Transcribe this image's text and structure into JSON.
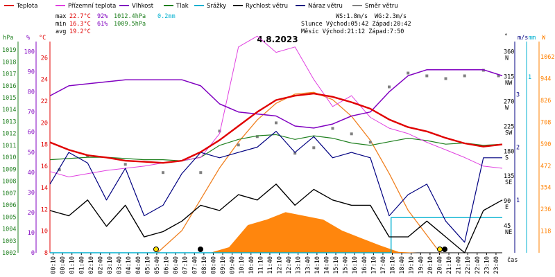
{
  "chart_data": {
    "type": "line",
    "title": "4.8.2023",
    "legend": [
      {
        "label": "Teplota",
        "color": "#e00000"
      },
      {
        "label": "Přízemní teplota",
        "color": "#e040e0"
      },
      {
        "label": "Vlhkost",
        "color": "#8000c0"
      },
      {
        "label": "Tlak",
        "color": "#208020"
      },
      {
        "label": "Srážky",
        "color": "#00b0d0"
      },
      {
        "label": "Rychlost větru",
        "color": "#000000"
      },
      {
        "label": "Náraz větru",
        "color": "#000080"
      },
      {
        "label": "Směr větru",
        "color": "#808080"
      }
    ],
    "stats": {
      "max": {
        "label": "max",
        "temp": "22.7°C",
        "hum": "92%",
        "press": "1012.4hPa",
        "rain": "0.2mm"
      },
      "min": {
        "label": "min",
        "temp": "16.3°C",
        "hum": "61%",
        "press": "1009.5hPa"
      },
      "avg": {
        "label": "avg",
        "temp": "19.2°C"
      },
      "ws": "WS:1.8m/s",
      "wg": "WG:2.3m/s",
      "sun": "Slunce Východ:05:42  Západ:20:42",
      "moon": "Měsíc  Východ:21:12  Západ:7:50"
    },
    "axes": {
      "hpa_title": "hPa",
      "pct_title": "%",
      "c_title": "°C",
      "deg_title": "°",
      "ms_title": "m/s",
      "mm_title": "mm",
      "w_title": "W",
      "x_title": "čas",
      "hpa": [
        1019,
        1018,
        1017,
        1016,
        1015,
        1014,
        1013,
        1012,
        1011,
        1010,
        1009,
        1008,
        1007,
        1006,
        1005,
        1004,
        1003,
        1002
      ],
      "pct": [
        100,
        90,
        80,
        70,
        60,
        50,
        40,
        30,
        20,
        10,
        0
      ],
      "c": [
        26,
        24,
        22,
        20,
        18,
        16,
        14,
        12,
        10,
        8
      ],
      "deg": [
        {
          "v": 360,
          "d": "N"
        },
        {
          "v": 315,
          "d": "NW"
        },
        {
          "v": 270,
          "d": "W"
        },
        {
          "v": 225,
          "d": "SW"
        },
        {
          "v": 180,
          "d": "S"
        },
        {
          "v": 135,
          "d": "SE"
        },
        {
          "v": 90,
          "d": "E"
        },
        {
          "v": 45,
          "d": "NE"
        }
      ],
      "ms": [
        3,
        2,
        1
      ],
      "mm": [
        1
      ],
      "w": [
        1062,
        944,
        826,
        708,
        590,
        472,
        354,
        236,
        118
      ],
      "x_ticks": [
        "00:10",
        "00:40",
        "01:10",
        "01:40",
        "02:10",
        "02:40",
        "03:10",
        "03:40",
        "04:10",
        "04:40",
        "05:10",
        "05:40",
        "06:10",
        "06:40",
        "07:10",
        "07:40",
        "08:10",
        "08:40",
        "09:10",
        "09:40",
        "10:10",
        "10:40",
        "11:10",
        "11:40",
        "12:10",
        "12:40",
        "13:10",
        "13:40",
        "14:10",
        "14:40",
        "15:10",
        "15:40",
        "16:10",
        "16:40",
        "17:10",
        "17:40",
        "18:10",
        "18:40",
        "19:10",
        "19:40",
        "20:10",
        "20:40",
        "21:10",
        "21:40",
        "22:10",
        "22:40",
        "23:10",
        "23:40"
      ]
    },
    "x_range_hours": [
      0,
      24
    ],
    "series": {
      "temperature": {
        "unit": "°C",
        "x": [
          0,
          1,
          2,
          3,
          4,
          5,
          6,
          7,
          8,
          9,
          10,
          11,
          12,
          13,
          14,
          15,
          16,
          17,
          18,
          19,
          20,
          21,
          22,
          23,
          24
        ],
        "y": [
          18.2,
          17.5,
          17.0,
          16.8,
          16.5,
          16.4,
          16.3,
          16.5,
          17.3,
          18.4,
          19.7,
          21.0,
          22.1,
          22.5,
          22.7,
          22.4,
          21.9,
          21.3,
          20.3,
          19.6,
          19.2,
          18.6,
          18.1,
          17.8,
          18.0
        ]
      },
      "ground_temperature": {
        "unit": "°C",
        "x": [
          0,
          1,
          2,
          3,
          4,
          5,
          6,
          7,
          8,
          9,
          9.5,
          10,
          11,
          12,
          13,
          14,
          15,
          16,
          17,
          18,
          19,
          20,
          21,
          22,
          23,
          24
        ],
        "y": [
          15.5,
          15.0,
          15.3,
          15.6,
          15.8,
          16.0,
          16.3,
          16.5,
          16.8,
          19.0,
          23.0,
          27.0,
          28.0,
          26.5,
          27.0,
          24.0,
          21.5,
          22.5,
          20.5,
          19.5,
          19.0,
          18.2,
          17.5,
          16.8,
          16.0,
          15.8
        ]
      },
      "humidity": {
        "unit": "%",
        "x": [
          0,
          1,
          2,
          3,
          4,
          5,
          6,
          7,
          8,
          9,
          10,
          11,
          12,
          13,
          14,
          15,
          16,
          17,
          18,
          19,
          20,
          21,
          22,
          23,
          24
        ],
        "y": [
          78,
          83,
          84,
          85,
          86,
          86,
          86,
          86,
          83,
          74,
          70,
          69,
          68,
          63,
          62,
          64,
          68,
          70,
          80,
          88,
          91,
          91,
          91,
          91,
          88
        ]
      },
      "pressure": {
        "unit": "hPa",
        "x": [
          0,
          1,
          2,
          3,
          4,
          5,
          6,
          7,
          8,
          9,
          10,
          11,
          12,
          13,
          14,
          15,
          16,
          17,
          18,
          19,
          20,
          21,
          22,
          23,
          24
        ],
        "y": [
          1009.8,
          1009.9,
          1010.0,
          1010.0,
          1009.9,
          1009.8,
          1009.8,
          1009.7,
          1010.0,
          1011.0,
          1011.5,
          1011.8,
          1011.9,
          1011.5,
          1011.8,
          1011.6,
          1011.2,
          1011.0,
          1011.3,
          1011.6,
          1011.4,
          1011.1,
          1011.2,
          1011.0,
          1011.1
        ]
      },
      "rain_total": {
        "unit": "mm",
        "x": [
          0,
          18.1,
          18.1,
          24
        ],
        "y": [
          0,
          0,
          0.2,
          0.2
        ]
      },
      "wind_speed": {
        "unit": "m/s",
        "x": [
          0,
          1,
          2,
          3,
          4,
          5,
          6,
          7,
          8,
          9,
          10,
          11,
          12,
          13,
          14,
          15,
          16,
          17,
          18,
          19,
          20,
          21,
          22,
          23,
          24
        ],
        "y": [
          0.8,
          0.7,
          1.0,
          0.5,
          0.9,
          0.3,
          0.4,
          0.6,
          0.9,
          0.8,
          1.1,
          1.0,
          1.3,
          0.9,
          1.2,
          1.0,
          0.9,
          0.9,
          0.3,
          0.3,
          0.6,
          0.3,
          0.0,
          0.8,
          1.0
        ]
      },
      "wind_gust": {
        "unit": "m/s",
        "x": [
          0,
          1,
          2,
          3,
          4,
          5,
          6,
          7,
          8,
          9,
          10,
          11,
          12,
          13,
          14,
          15,
          16,
          17,
          18,
          19,
          20,
          21,
          22,
          23,
          24
        ],
        "y": [
          1.3,
          1.9,
          1.7,
          1.0,
          1.6,
          0.7,
          0.9,
          1.5,
          1.9,
          1.8,
          1.9,
          2.0,
          2.3,
          1.9,
          2.2,
          1.8,
          1.9,
          1.8,
          0.7,
          1.1,
          1.3,
          0.6,
          0.2,
          1.8,
          1.8
        ]
      },
      "wind_direction": {
        "unit": "°",
        "x": [
          0.5,
          2,
          4,
          6,
          8,
          9,
          10,
          11,
          12,
          13,
          14,
          15,
          16,
          17,
          18,
          19,
          20,
          21,
          22,
          23,
          23.8
        ],
        "y": [
          150,
          175,
          160,
          145,
          145,
          220,
          195,
          210,
          235,
          180,
          190,
          225,
          215,
          200,
          300,
          325,
          320,
          315,
          320,
          330,
          320
        ]
      },
      "solar_radiation": {
        "unit": "W",
        "x": [
          0,
          6.5,
          7.5,
          8.5,
          9.5,
          10.5,
          11.5,
          12.5,
          13.5,
          14.5,
          15.5,
          16.5,
          17.5,
          18.5,
          19.5,
          20.5,
          24
        ],
        "y": [
          0,
          0,
          0,
          0,
          30,
          150,
          180,
          220,
          200,
          180,
          120,
          80,
          40,
          5,
          0,
          0,
          0
        ]
      },
      "theoretical_radiation": {
        "unit": "W",
        "x": [
          5.7,
          7,
          8,
          9,
          10,
          11,
          12,
          13,
          14,
          15,
          16,
          17,
          18,
          19,
          20.7
        ],
        "y": [
          0,
          120,
          290,
          460,
          600,
          720,
          810,
          860,
          870,
          830,
          740,
          610,
          430,
          230,
          0
        ]
      }
    }
  }
}
